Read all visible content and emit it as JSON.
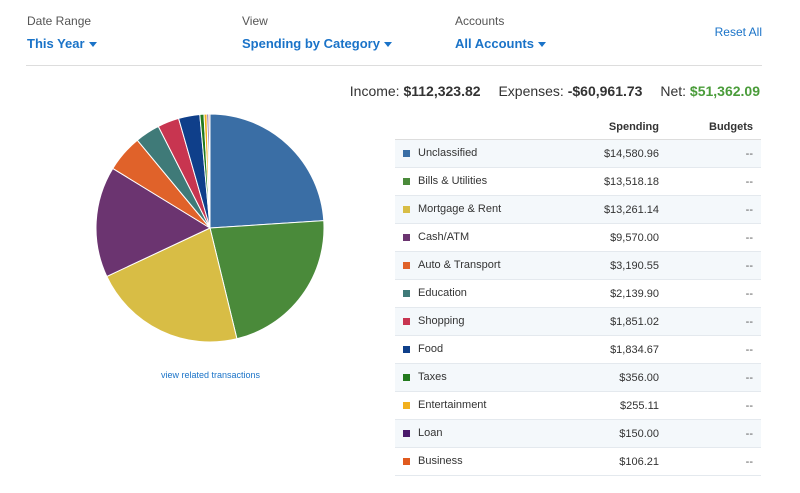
{
  "filters": {
    "date_range": {
      "label": "Date Range",
      "value": "This Year"
    },
    "view": {
      "label": "View",
      "value": "Spending by Category"
    },
    "accounts": {
      "label": "Accounts",
      "value": "All Accounts"
    },
    "reset_label": "Reset All"
  },
  "summary": {
    "income_label": "Income:",
    "income_value": "$112,323.82",
    "expenses_label": "Expenses:",
    "expenses_value": "-$60,961.73",
    "net_label": "Net:",
    "net_value": "$51,362.09",
    "net_color": "#4a9c3a"
  },
  "link_view_related": "view related transactions",
  "table": {
    "headers": {
      "category": "",
      "spending": "Spending",
      "budgets": "Budgets"
    },
    "rows": [
      {
        "name": "Unclassified",
        "amount": "$14,580.96",
        "budget": "--",
        "color": "#3a6ea5"
      },
      {
        "name": "Bills & Utilities",
        "amount": "$13,518.18",
        "budget": "--",
        "color": "#4a8a3a"
      },
      {
        "name": "Mortgage & Rent",
        "amount": "$13,261.14",
        "budget": "--",
        "color": "#d8bd45"
      },
      {
        "name": "Cash/ATM",
        "amount": "$9,570.00",
        "budget": "--",
        "color": "#6b3470"
      },
      {
        "name": "Auto & Transport",
        "amount": "$3,190.55",
        "budget": "--",
        "color": "#e0622a"
      },
      {
        "name": "Education",
        "amount": "$2,139.90",
        "budget": "--",
        "color": "#3f7a78"
      },
      {
        "name": "Shopping",
        "amount": "$1,851.02",
        "budget": "--",
        "color": "#c83550"
      },
      {
        "name": "Food",
        "amount": "$1,834.67",
        "budget": "--",
        "color": "#0f3f8a"
      },
      {
        "name": "Taxes",
        "amount": "$356.00",
        "budget": "--",
        "color": "#237a1e"
      },
      {
        "name": "Entertainment",
        "amount": "$255.11",
        "budget": "--",
        "color": "#f2b01e"
      },
      {
        "name": "Loan",
        "amount": "$150.00",
        "budget": "--",
        "color": "#4a1a6b"
      },
      {
        "name": "Business",
        "amount": "$106.21",
        "budget": "--",
        "color": "#e05a1e"
      }
    ]
  },
  "chart_data": {
    "type": "pie",
    "categories": [
      "Unclassified",
      "Bills & Utilities",
      "Mortgage & Rent",
      "Cash/ATM",
      "Auto & Transport",
      "Education",
      "Shopping",
      "Food",
      "Taxes",
      "Entertainment",
      "Loan",
      "Business"
    ],
    "values": [
      14580.96,
      13518.18,
      13261.14,
      9570.0,
      3190.55,
      2139.9,
      1851.02,
      1834.67,
      356.0,
      255.11,
      150.0,
      106.21
    ],
    "colors": [
      "#3a6ea5",
      "#4a8a3a",
      "#d8bd45",
      "#6b3470",
      "#e0622a",
      "#3f7a78",
      "#c83550",
      "#0f3f8a",
      "#237a1e",
      "#f2b01e",
      "#4a1a6b",
      "#e05a1e"
    ]
  }
}
